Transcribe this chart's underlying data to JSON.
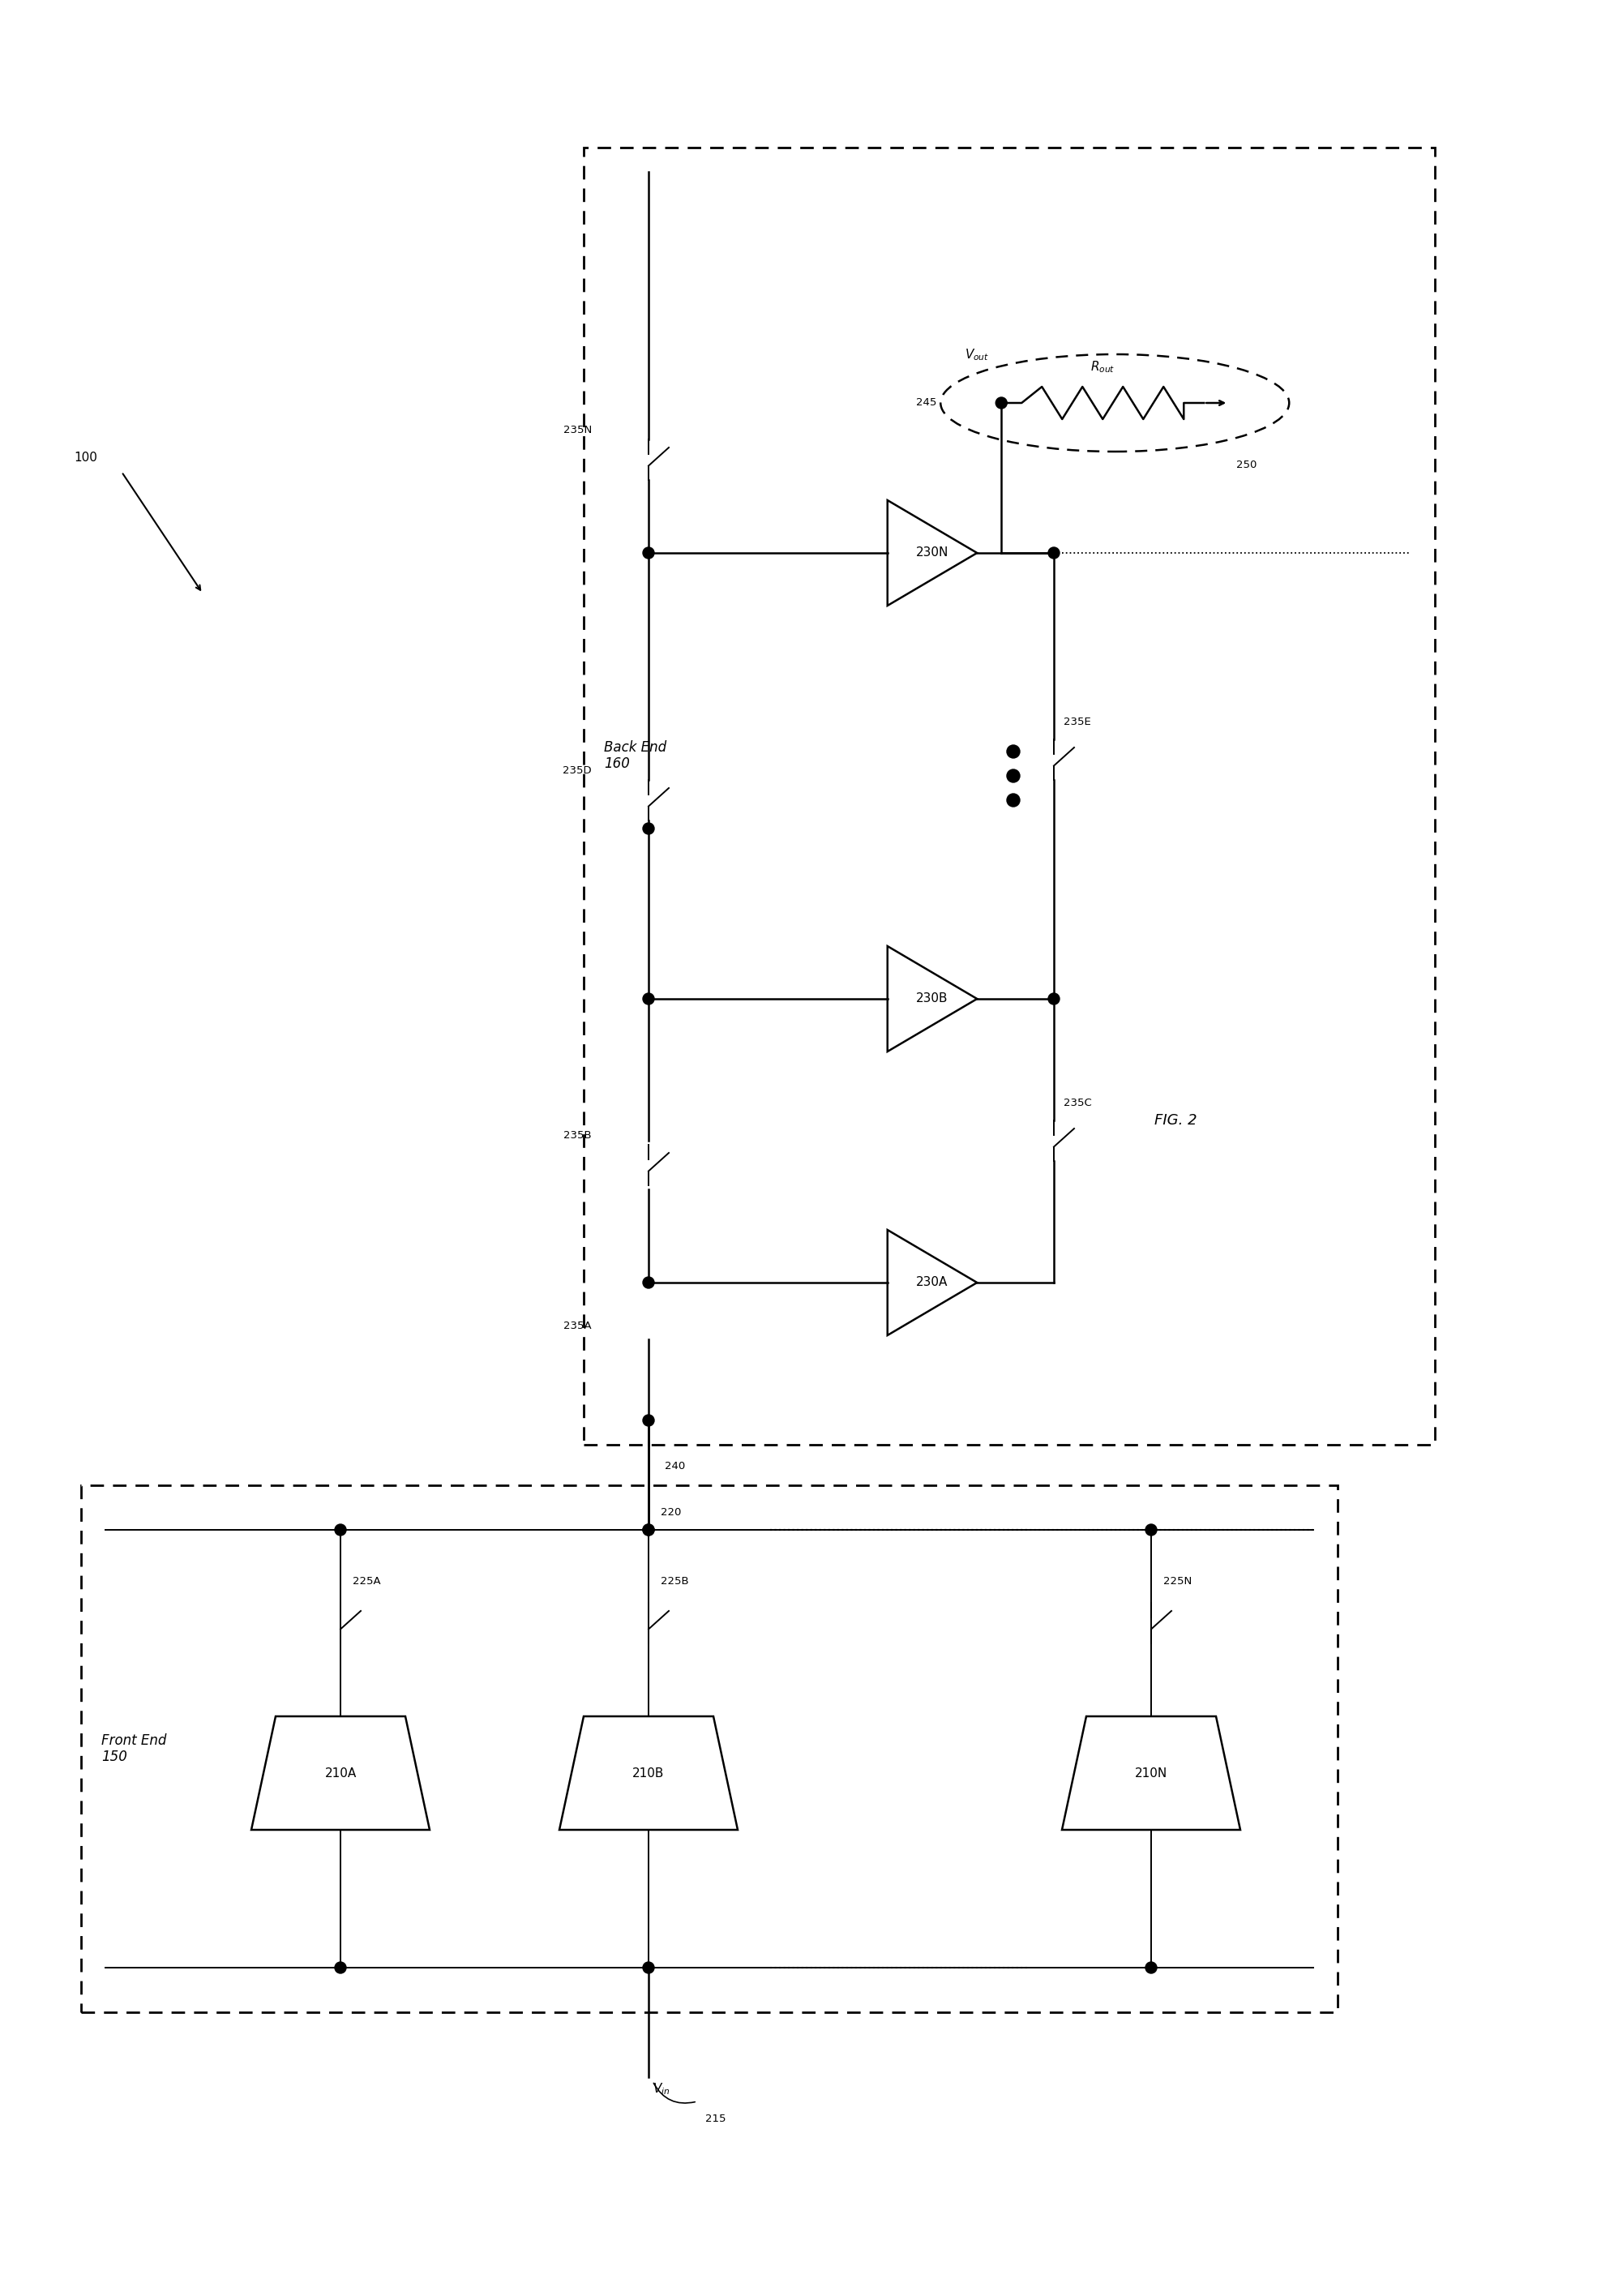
{
  "fig_width": 19.7,
  "fig_height": 28.32,
  "bg_color": "#ffffff",
  "line_color": "#000000",
  "dashed_color": "#000000",
  "title": "FIG. 2",
  "ref_100": "100",
  "front_end_label": "Front End\n150",
  "back_end_label": "Back End\n160",
  "vin_label": "V_in",
  "vout_label": "V_out",
  "rout_label": "R_out",
  "node_215": "215",
  "node_220": "220",
  "node_240": "240",
  "node_245": "245",
  "node_250": "250",
  "amp_labels_front": [
    "210A",
    "210B",
    "210N"
  ],
  "switch_labels_front": [
    "225A",
    "225B",
    "225N"
  ],
  "amp_labels_back": [
    "230A",
    "230B",
    "230N"
  ],
  "switch_labels_back": [
    "235A",
    "235B",
    "235C",
    "235D",
    "235E",
    "235N"
  ]
}
